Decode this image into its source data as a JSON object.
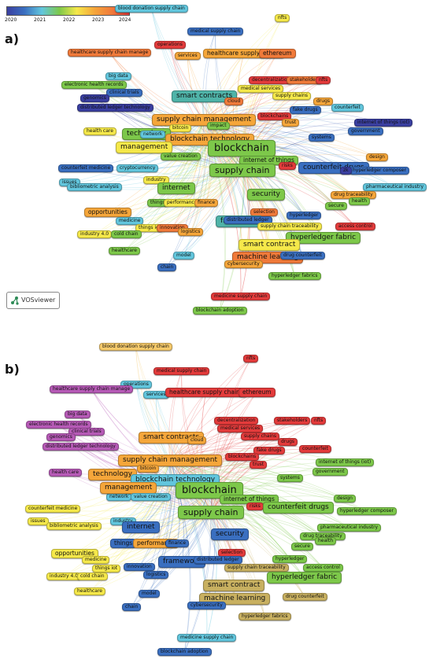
{
  "panels": [
    {
      "label": "a)",
      "legend": {
        "ticks": [
          "2020",
          "2021",
          "2022",
          "2023",
          "2024"
        ]
      },
      "brand": "VOSviewer",
      "nodes": [
        {
          "t": "blood donation supply chain",
          "c": "#62c6dd"
        },
        {
          "t": "nfts",
          "c": "#f5e84a"
        },
        {
          "t": "medical supply chain",
          "c": "#3a6fc0"
        },
        {
          "t": "operations",
          "c": "#e33b3b"
        },
        {
          "t": "healthcare supply chain manage",
          "c": "#f07a3a"
        },
        {
          "t": "services",
          "c": "#f5a63a"
        },
        {
          "t": "healthcare supply chains",
          "c": "#f5a63a"
        },
        {
          "t": "ethereum",
          "c": "#f07a3a"
        },
        {
          "t": "big data",
          "c": "#62c6dd"
        },
        {
          "t": "electronic health records",
          "c": "#7dc84a"
        },
        {
          "t": "decentralization",
          "c": "#e33b3b"
        },
        {
          "t": "stakeholders",
          "c": "#f07a3a"
        },
        {
          "t": "nfts",
          "c": "#e33b3b"
        },
        {
          "t": "clinical trials",
          "c": "#3a6fc0"
        },
        {
          "t": "genomics",
          "c": "#3a3fa0"
        },
        {
          "t": "medical services",
          "c": "#f5e84a"
        },
        {
          "t": "supply chains",
          "c": "#f5e84a"
        },
        {
          "t": "smart contracts",
          "c": "#4fb3a8"
        },
        {
          "t": "cloud",
          "c": "#f07a3a"
        },
        {
          "t": "drugs",
          "c": "#f5a63a"
        },
        {
          "t": "distributed ledger technology",
          "c": "#3a3fa0"
        },
        {
          "t": "fake drugs",
          "c": "#3a6fc0"
        },
        {
          "t": "counterfeit",
          "c": "#62c6dd"
        },
        {
          "t": "blockchains",
          "c": "#e33b3b"
        },
        {
          "t": "trust",
          "c": "#f5a63a"
        },
        {
          "t": "supply chain management",
          "c": "#f5a63a"
        },
        {
          "t": "impact",
          "c": "#7dc84a"
        },
        {
          "t": "internet of things (iot)",
          "c": "#3a3fa0"
        },
        {
          "t": "bitcoin",
          "c": "#f5e84a"
        },
        {
          "t": "health care",
          "c": "#f5e84a"
        },
        {
          "t": "government",
          "c": "#3a6fc0"
        },
        {
          "t": "technology",
          "c": "#7dc84a"
        },
        {
          "t": "blockchain technology",
          "c": "#f5a63a"
        },
        {
          "t": "systems",
          "c": "#3a6fc0"
        },
        {
          "t": "network",
          "c": "#62c6dd"
        },
        {
          "t": "management",
          "c": "#f5e84a"
        },
        {
          "t": "blockchain",
          "c": "#7dc84a"
        },
        {
          "t": "internet of things",
          "c": "#7dc84a"
        },
        {
          "t": "design",
          "c": "#f5a63a"
        },
        {
          "t": "value creation",
          "c": "#7dc84a"
        },
        {
          "t": "risks",
          "c": "#e33b3b"
        },
        {
          "t": "counterfeit drugs",
          "c": "#3a6fc0"
        },
        {
          "t": "hyperledger composer",
          "c": "#3a6fc0"
        },
        {
          "t": "counterfeit medicine",
          "c": "#3a6fc0"
        },
        {
          "t": "cryptocurrency",
          "c": "#62c6dd"
        },
        {
          "t": "supply chain",
          "c": "#7dc84a"
        },
        {
          "t": "zk",
          "c": "#3a3fa0"
        },
        {
          "t": "pharmaceutical industry",
          "c": "#62c6dd"
        },
        {
          "t": "issues",
          "c": "#62c6dd"
        },
        {
          "t": "industry",
          "c": "#f5e84a"
        },
        {
          "t": "internet",
          "c": "#7dc84a"
        },
        {
          "t": "bibliometric analysis",
          "c": "#62c6dd"
        },
        {
          "t": "security",
          "c": "#7dc84a"
        },
        {
          "t": "drug traceability",
          "c": "#f5a63a"
        },
        {
          "t": "health",
          "c": "#7dc84a"
        },
        {
          "t": "secure",
          "c": "#7dc84a"
        },
        {
          "t": "things",
          "c": "#7dc84a"
        },
        {
          "t": "performance",
          "c": "#f5e84a"
        },
        {
          "t": "finance",
          "c": "#f5a63a"
        },
        {
          "t": "opportunities",
          "c": "#f5a63a"
        },
        {
          "t": "selection",
          "c": "#f07a3a"
        },
        {
          "t": "framework",
          "c": "#4fb3a8"
        },
        {
          "t": "hyperledger",
          "c": "#3a6fc0"
        },
        {
          "t": "medicine",
          "c": "#62c6dd"
        },
        {
          "t": "distributed ledger",
          "c": "#3a6fc0"
        },
        {
          "t": "supply chain traceability",
          "c": "#f5e84a"
        },
        {
          "t": "access control",
          "c": "#e33b3b"
        },
        {
          "t": "things iot",
          "c": "#f5e84a"
        },
        {
          "t": "innovation",
          "c": "#f07a3a"
        },
        {
          "t": "logistics",
          "c": "#f5a63a"
        },
        {
          "t": "hyperledger fabric",
          "c": "#7dc84a"
        },
        {
          "t": "industry 4.0",
          "c": "#f5e84a"
        },
        {
          "t": "cold chain",
          "c": "#7dc84a"
        },
        {
          "t": "smart contract",
          "c": "#f5e84a"
        },
        {
          "t": "healthcare",
          "c": "#7dc84a"
        },
        {
          "t": "model",
          "c": "#62c6dd"
        },
        {
          "t": "machine learning",
          "c": "#f07a3a"
        },
        {
          "t": "drug counterfeit",
          "c": "#3a6fc0"
        },
        {
          "t": "cybersecurity",
          "c": "#f5a63a"
        },
        {
          "t": "chain",
          "c": "#3a6fc0"
        },
        {
          "t": "hyperledger fabrics",
          "c": "#7dc84a"
        },
        {
          "t": "medicine supply chain",
          "c": "#e33b3b"
        },
        {
          "t": "blockchain adoption",
          "c": "#7dc84a"
        }
      ]
    },
    {
      "label": "b)",
      "nodes": [
        {
          "t": "blood donation supply chain",
          "c": "#f5c96a"
        },
        {
          "t": "nfts",
          "c": "#e33b3b"
        },
        {
          "t": "medical supply chain",
          "c": "#e33b3b"
        },
        {
          "t": "operations",
          "c": "#62c6dd"
        },
        {
          "t": "healthcare supply chain manage",
          "c": "#b65ab6"
        },
        {
          "t": "services",
          "c": "#62c6dd"
        },
        {
          "t": "healthcare supply chains",
          "c": "#e33b3b"
        },
        {
          "t": "ethereum",
          "c": "#e33b3b"
        },
        {
          "t": "big data",
          "c": "#b65ab6"
        },
        {
          "t": "electronic health records",
          "c": "#b65ab6"
        },
        {
          "t": "decentralization",
          "c": "#e33b3b"
        },
        {
          "t": "stakeholders",
          "c": "#e33b3b"
        },
        {
          "t": "nfts",
          "c": "#e33b3b"
        },
        {
          "t": "clinical trials",
          "c": "#b65ab6"
        },
        {
          "t": "genomics",
          "c": "#b65ab6"
        },
        {
          "t": "medical services",
          "c": "#e33b3b"
        },
        {
          "t": "supply chains",
          "c": "#e33b3b"
        },
        {
          "t": "smart contracts",
          "c": "#f5a63a"
        },
        {
          "t": "cloud",
          "c": "#f5a63a"
        },
        {
          "t": "drugs",
          "c": "#e33b3b"
        },
        {
          "t": "distributed ledger technology",
          "c": "#b65ab6"
        },
        {
          "t": "fake drugs",
          "c": "#e33b3b"
        },
        {
          "t": "counterfeit",
          "c": "#e33b3b"
        },
        {
          "t": "blockchains",
          "c": "#e33b3b"
        },
        {
          "t": "trust",
          "c": "#e33b3b"
        },
        {
          "t": "supply chain management",
          "c": "#f5a63a"
        },
        {
          "t": "internet of things (iot)",
          "c": "#7dc84a"
        },
        {
          "t": "bitcoin",
          "c": "#f5a63a"
        },
        {
          "t": "health care",
          "c": "#b65ab6"
        },
        {
          "t": "government",
          "c": "#7dc84a"
        },
        {
          "t": "technology",
          "c": "#f5a63a"
        },
        {
          "t": "blockchain technology",
          "c": "#62c6dd"
        },
        {
          "t": "systems",
          "c": "#7dc84a"
        },
        {
          "t": "network",
          "c": "#62c6dd"
        },
        {
          "t": "management",
          "c": "#f5a63a"
        },
        {
          "t": "blockchain",
          "c": "#7dc84a"
        },
        {
          "t": "internet of things",
          "c": "#7dc84a"
        },
        {
          "t": "design",
          "c": "#7dc84a"
        },
        {
          "t": "value creation",
          "c": "#62c6dd"
        },
        {
          "t": "risks",
          "c": "#e33b3b"
        },
        {
          "t": "counterfeit drugs",
          "c": "#7dc84a"
        },
        {
          "t": "hyperledger composer",
          "c": "#7dc84a"
        },
        {
          "t": "counterfeit medicine",
          "c": "#f5e84a"
        },
        {
          "t": "supply chain",
          "c": "#7dc84a"
        },
        {
          "t": "pharmaceutical industry",
          "c": "#7dc84a"
        },
        {
          "t": "issues",
          "c": "#f5e84a"
        },
        {
          "t": "industry",
          "c": "#62c6dd"
        },
        {
          "t": "internet",
          "c": "#3a6fc0"
        },
        {
          "t": "bibliometric analysis",
          "c": "#f5e84a"
        },
        {
          "t": "security",
          "c": "#3a6fc0"
        },
        {
          "t": "drug traceability",
          "c": "#7dc84a"
        },
        {
          "t": "health",
          "c": "#7dc84a"
        },
        {
          "t": "secure",
          "c": "#7dc84a"
        },
        {
          "t": "things",
          "c": "#3a6fc0"
        },
        {
          "t": "performance",
          "c": "#f5a63a"
        },
        {
          "t": "finance",
          "c": "#3a6fc0"
        },
        {
          "t": "opportunities",
          "c": "#f5e84a"
        },
        {
          "t": "selection",
          "c": "#e33b3b"
        },
        {
          "t": "framework",
          "c": "#3a6fc0"
        },
        {
          "t": "hyperledger",
          "c": "#7dc84a"
        },
        {
          "t": "medicine",
          "c": "#f5e84a"
        },
        {
          "t": "distributed ledger",
          "c": "#3a6fc0"
        },
        {
          "t": "supply chain traceability",
          "c": "#c8b060"
        },
        {
          "t": "access control",
          "c": "#7dc84a"
        },
        {
          "t": "things iot",
          "c": "#f5e84a"
        },
        {
          "t": "innovation",
          "c": "#3a6fc0"
        },
        {
          "t": "logistics",
          "c": "#3a6fc0"
        },
        {
          "t": "hyperledger fabric",
          "c": "#7dc84a"
        },
        {
          "t": "industry 4.0",
          "c": "#f5e84a"
        },
        {
          "t": "cold chain",
          "c": "#f5e84a"
        },
        {
          "t": "smart contract",
          "c": "#c8b060"
        },
        {
          "t": "healthcare",
          "c": "#f5e84a"
        },
        {
          "t": "model",
          "c": "#3a6fc0"
        },
        {
          "t": "machine learning",
          "c": "#c8b060"
        },
        {
          "t": "drug counterfeit",
          "c": "#c8b060"
        },
        {
          "t": "cybersecurity",
          "c": "#3a6fc0"
        },
        {
          "t": "chain",
          "c": "#3a6fc0"
        },
        {
          "t": "hyperledger fabrics",
          "c": "#c8b060"
        },
        {
          "t": "medicine supply chain",
          "c": "#62c6dd"
        },
        {
          "t": "blockchain adoption",
          "c": "#3a6fc0"
        }
      ]
    }
  ]
}
